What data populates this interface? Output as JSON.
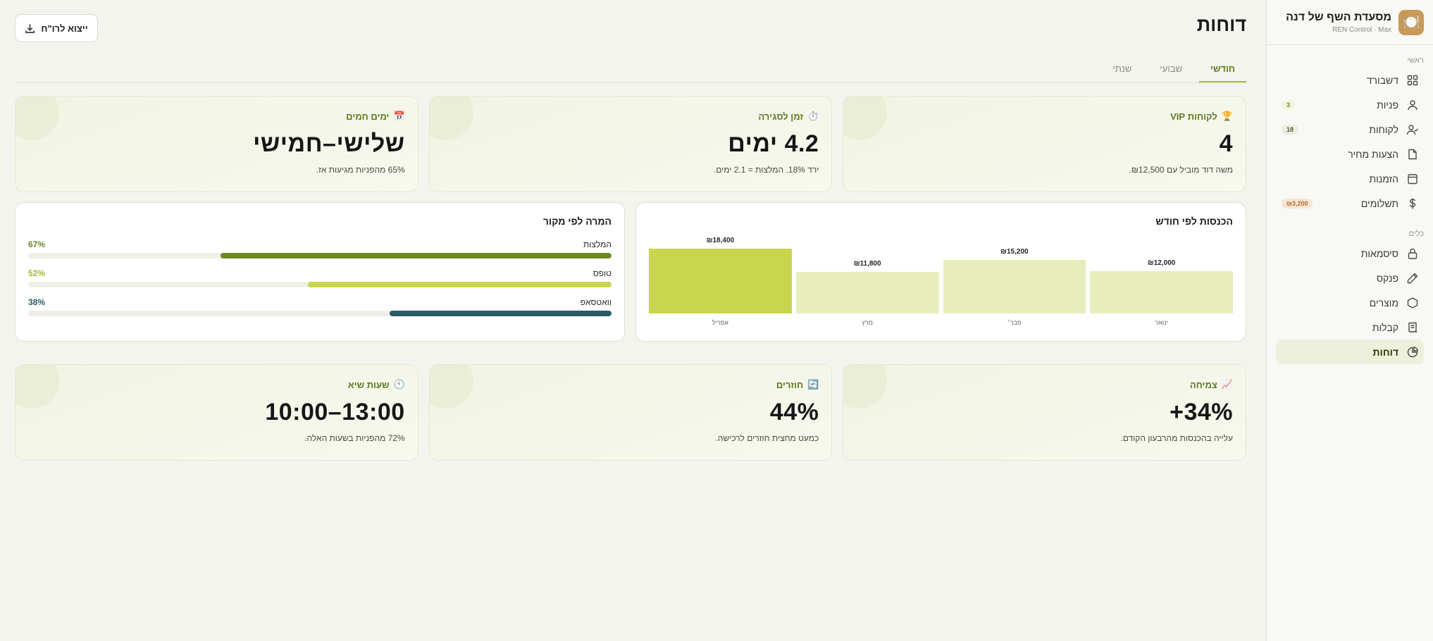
{
  "brand": {
    "title": "מסעדת השף של דנה",
    "sub": "REN Control · Max",
    "logo_icon": "plate-icon"
  },
  "nav": {
    "main_label": "ראשי",
    "main_items": [
      {
        "label": "דשבורד",
        "icon": "grid-icon"
      },
      {
        "label": "פניות",
        "icon": "user-icon",
        "badge": "3"
      },
      {
        "label": "לקוחות",
        "icon": "users-icon",
        "badge": "18"
      },
      {
        "label": "הצעות מחיר",
        "icon": "file-icon"
      },
      {
        "label": "הזמנות",
        "icon": "bag-icon"
      },
      {
        "label": "תשלומים",
        "icon": "dollar-icon",
        "badge": "₪3,200"
      }
    ],
    "tools_label": "כלים",
    "tools_items": [
      {
        "label": "סיסמאות",
        "icon": "lock-icon"
      },
      {
        "label": "פנקס",
        "icon": "pen-icon"
      },
      {
        "label": "מוצרים",
        "icon": "box-icon"
      },
      {
        "label": "קבלות",
        "icon": "receipt-icon"
      },
      {
        "label": "דוחות",
        "icon": "pie-icon"
      }
    ]
  },
  "header": {
    "title": "דוחות",
    "export_label": "ייצוא לרו\"ח"
  },
  "tabs": [
    "חודשי",
    "שבועי",
    "שנתי"
  ],
  "top_stats": [
    {
      "emoji": "🏆",
      "label": "לקוחות VIP",
      "value": "4",
      "desc": "משה דוד מוביל עם ₪12,500."
    },
    {
      "emoji": "⏱️",
      "label": "זמן לסגירה",
      "value": "4.2 ימים",
      "desc": "ירד 18%. המלצות = 2.1 ימים."
    },
    {
      "emoji": "📅",
      "label": "ימים חמים",
      "value": "שלישי–חמישי",
      "desc": "65% מהפניות מגיעות אז."
    }
  ],
  "revenue_panel": {
    "title": "הכנסות לפי חודש"
  },
  "source_panel": {
    "title": "המרה לפי מקור",
    "rows": [
      {
        "label": "המלצות",
        "pct": "67%",
        "value": 67,
        "color": "#6b8a24"
      },
      {
        "label": "טופס",
        "pct": "52%",
        "value": 52,
        "color": "#c8d54e"
      },
      {
        "label": "וואטסאפ",
        "pct": "38%",
        "value": 38,
        "color": "#2a5a66"
      }
    ]
  },
  "bottom_stats": [
    {
      "emoji": "📈",
      "label": "צמיחה",
      "value": "+34%",
      "desc": "עלייה בהכנסות מהרבעון הקודם."
    },
    {
      "emoji": "🔄",
      "label": "חוזרים",
      "value": "44%",
      "desc": "כמעט מחצית חוזרים לרכישה."
    },
    {
      "emoji": "🕙",
      "label": "שעות שיא",
      "value": "10:00–13:00",
      "desc": "72% מהפניות בשעות האלה."
    }
  ],
  "chart_data": {
    "type": "bar",
    "categories": [
      "ינואר",
      "פבר׳",
      "מרץ",
      "אפריל"
    ],
    "values": [
      12000,
      15200,
      11800,
      18400
    ],
    "labels": [
      "₪12,000",
      "₪15,200",
      "₪11,800",
      "₪18,400"
    ],
    "title": "הכנסות לפי חודש",
    "highlight": "אפריל",
    "colors": {
      "normal": "#e8edbc",
      "highlight": "#c8d54e"
    }
  }
}
